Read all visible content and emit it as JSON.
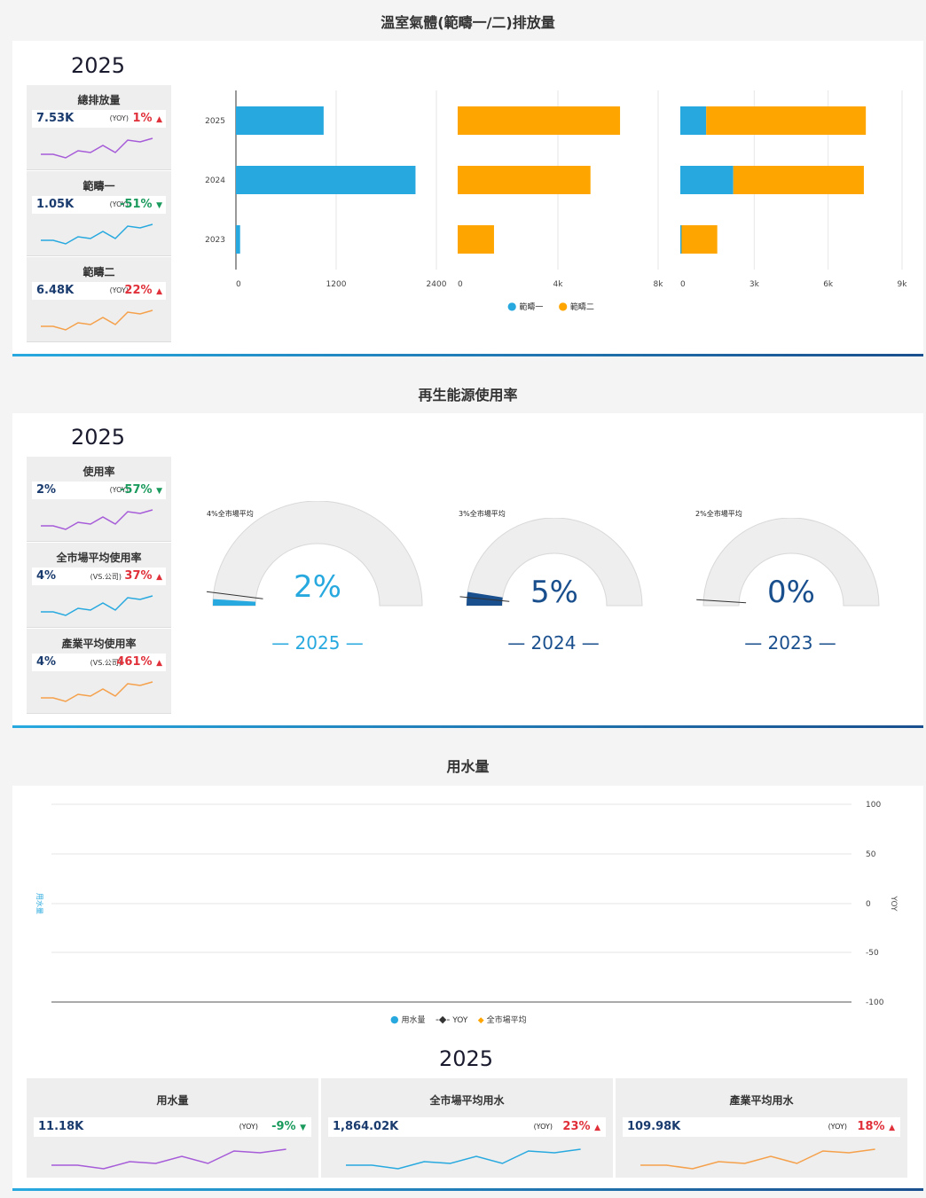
{
  "ghg": {
    "title": "溫室氣體(範疇一/二)排放量",
    "year": "2025",
    "kpis": [
      {
        "title": "總排放量",
        "value": "7.53K",
        "label": "(YOY)",
        "pct": "1%",
        "dir": "up",
        "spark_color": "#a65bd8"
      },
      {
        "title": "範疇一",
        "value": "1.05K",
        "label": "(YOY)",
        "pct": "-51%",
        "dir": "down",
        "spark_color": "#27a9df"
      },
      {
        "title": "範疇二",
        "value": "6.48K",
        "label": "(YOY)",
        "pct": "22%",
        "dir": "up",
        "spark_color": "#f5a04a"
      }
    ],
    "legend": [
      "範疇一",
      "範疇二"
    ]
  },
  "renew": {
    "title": "再生能源使用率",
    "year": "2025",
    "kpis": [
      {
        "title": "使用率",
        "value": "2%",
        "label": "(YOY)",
        "pct": "-57%",
        "dir": "down",
        "spark_color": "#a65bd8"
      },
      {
        "title": "全市場平均使用率",
        "value": "4%",
        "label": "(VS.公司)",
        "pct": "37%",
        "dir": "up",
        "spark_color": "#27a9df"
      },
      {
        "title": "產業平均使用率",
        "value": "4%",
        "label": "(VS.公司)",
        "pct": "461%",
        "dir": "up",
        "spark_color": "#f5a04a"
      }
    ],
    "gauges": [
      {
        "caption": "4%全市場平均",
        "value": "2%",
        "year": "— 2025 —",
        "fill": 0.02,
        "avg": 0.04,
        "color": "#27a9df"
      },
      {
        "caption": "3%全市場平均",
        "value": "5%",
        "year": "— 2024 —",
        "fill": 0.05,
        "avg": 0.03,
        "color": "#1a4f8e"
      },
      {
        "caption": "2%全市場平均",
        "value": "0%",
        "year": "— 2023 —",
        "fill": 0.0,
        "avg": 0.02,
        "color": "#1a4f8e"
      }
    ]
  },
  "water": {
    "title": "用水量",
    "y_left_label": "用水量",
    "y_right_label": "YOY",
    "right_ticks": [
      "100",
      "50",
      "0",
      "-50",
      "-100"
    ],
    "legend": [
      "用水量",
      "YOY",
      "全市場平均"
    ],
    "year": "2025",
    "kpis": [
      {
        "title": "用水量",
        "value": "11.18K",
        "label": "(YOY)",
        "pct": "-9%",
        "dir": "down",
        "spark_color": "#a65bd8"
      },
      {
        "title": "全市場平均用水",
        "value": "1,864.02K",
        "label": "(YOY)",
        "pct": "23%",
        "dir": "up",
        "spark_color": "#27a9df"
      },
      {
        "title": "產業平均用水",
        "value": "109.98K",
        "label": "(YOY)",
        "pct": "18%",
        "dir": "up",
        "spark_color": "#f5a04a"
      }
    ]
  },
  "chart_data": {
    "type": "bar",
    "orientation": "horizontal",
    "categories": [
      "2025",
      "2024",
      "2023"
    ],
    "panels": [
      {
        "name": "範疇一",
        "color": "#27a9df",
        "values": [
          1050,
          2150,
          50
        ],
        "ticks": [
          "0",
          "1200",
          "2400"
        ],
        "max": 2400
      },
      {
        "name": "範疇二",
        "color": "#ffa500",
        "values": [
          6480,
          5300,
          1450
        ],
        "ticks": [
          "0",
          "4k",
          "8k"
        ],
        "max": 8000
      },
      {
        "name": "stacked",
        "stacked": true,
        "series": [
          {
            "name": "範疇一",
            "color": "#27a9df",
            "values": [
              1050,
              2150,
              50
            ]
          },
          {
            "name": "範疇二",
            "color": "#ffa500",
            "values": [
              6480,
              5300,
              1450
            ]
          }
        ],
        "ticks": [
          "0",
          "3k",
          "6k",
          "9k"
        ],
        "max": 9000
      }
    ]
  }
}
